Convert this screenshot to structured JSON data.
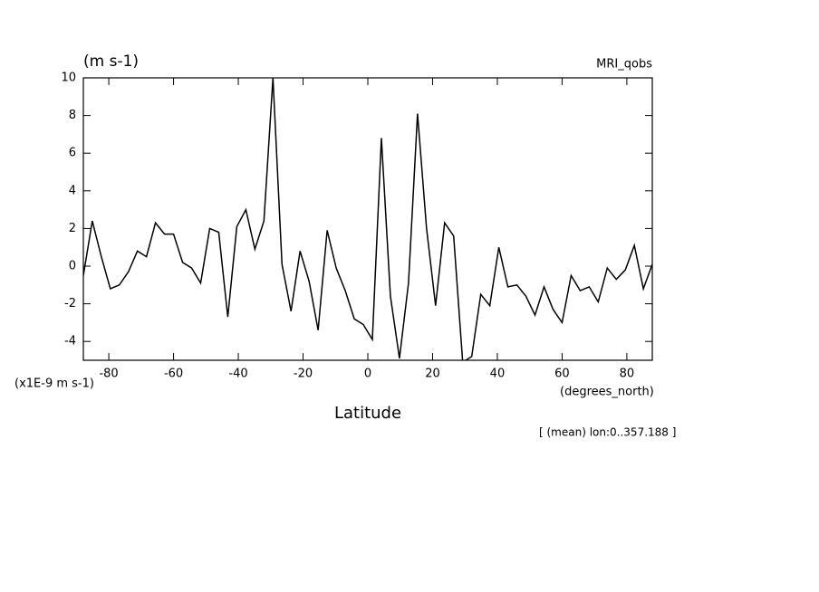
{
  "chart_data": {
    "type": "line",
    "title": "MRI_qobs",
    "units_label": "(m s-1)",
    "scale_label": "(x1E-9 m s-1)",
    "x_units_label": "(degrees_north)",
    "x_label": "Latitude",
    "note": "[ (mean) lon:0..357.188 ]",
    "x": [
      -87.86,
      -85.1,
      -82.31,
      -79.53,
      -76.74,
      -73.95,
      -71.16,
      -68.37,
      -65.58,
      -62.79,
      -60.0,
      -57.21,
      -54.42,
      -51.63,
      -48.84,
      -46.05,
      -43.25,
      -40.46,
      -37.67,
      -34.88,
      -32.09,
      -29.3,
      -26.51,
      -23.72,
      -20.93,
      -18.14,
      -15.35,
      -12.56,
      -9.77,
      -6.98,
      -4.19,
      -1.4,
      1.4,
      4.19,
      6.98,
      9.77,
      12.56,
      15.35,
      18.14,
      20.93,
      23.72,
      26.51,
      29.3,
      32.09,
      34.88,
      37.67,
      40.46,
      43.25,
      46.05,
      48.84,
      51.63,
      54.42,
      57.21,
      60.0,
      62.79,
      65.58,
      68.37,
      71.16,
      73.95,
      76.74,
      79.53,
      82.31,
      85.1,
      87.86
    ],
    "series": [
      {
        "color": "#000000",
        "values": [
          -0.5,
          2.4,
          0.5,
          -1.2,
          -1.0,
          -0.3,
          0.8,
          0.5,
          2.3,
          1.7,
          1.7,
          0.2,
          -0.1,
          -0.9,
          2.0,
          1.8,
          -2.7,
          2.1,
          3.0,
          0.9,
          2.4,
          10.0,
          0.1,
          -2.4,
          0.8,
          -0.8,
          -3.4,
          1.9,
          -0.1,
          -1.3,
          -2.8,
          -3.1,
          -3.9,
          6.8,
          -1.6,
          -4.9,
          -0.9,
          8.1,
          2.0,
          -2.1,
          2.3,
          1.6,
          -5.1,
          -4.8,
          -1.5,
          -2.1,
          1.0,
          -1.1,
          -1.0,
          -1.6,
          -2.6,
          -1.1,
          -2.3,
          -3.0,
          -0.5,
          -1.3,
          -1.1,
          -1.9,
          -0.1,
          -0.7,
          -0.2,
          1.1,
          -1.2,
          0.1
        ]
      }
    ],
    "xlim": [
      -87.86,
      87.86
    ],
    "xticks": [
      -80,
      -60,
      -40,
      -20,
      0,
      20,
      40,
      60,
      80
    ],
    "ylim": [
      -5,
      10
    ],
    "yticks": [
      -4,
      -2,
      0,
      2,
      4,
      6,
      8,
      10
    ]
  }
}
